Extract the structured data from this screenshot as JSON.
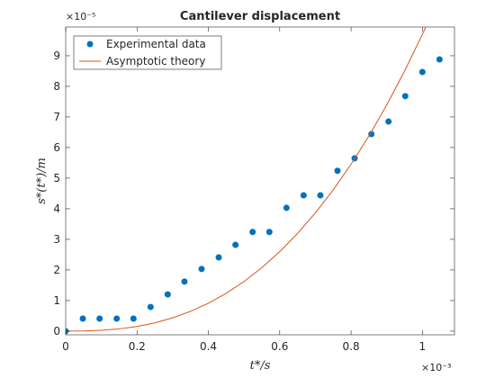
{
  "chart_data": {
    "type": "scatter-line",
    "title": "Cantilever displacement",
    "x_label": "t*/s",
    "y_label": "s*(t*)/m",
    "x_exponent": "×10⁻³",
    "y_exponent": "×10⁻⁵",
    "xlim": [
      0,
      1.09
    ],
    "ylim": [
      -0.12,
      9.94
    ],
    "xticks": [
      0,
      0.2,
      0.4,
      0.6,
      0.8,
      1
    ],
    "yticks": [
      0,
      1,
      2,
      3,
      4,
      5,
      6,
      7,
      8,
      9
    ],
    "legend": "upper left",
    "series": [
      {
        "name": "Experimental data",
        "color": "#0072bd",
        "kind": "markers",
        "x": [
          0,
          0.048,
          0.095,
          0.143,
          0.19,
          0.238,
          0.286,
          0.333,
          0.381,
          0.429,
          0.476,
          0.524,
          0.571,
          0.619,
          0.667,
          0.714,
          0.762,
          0.81,
          0.857,
          0.905,
          0.952,
          1.0,
          1.048
        ],
        "values": [
          0,
          0.41,
          0.41,
          0.41,
          0.41,
          0.79,
          1.2,
          1.62,
          2.03,
          2.41,
          2.82,
          3.24,
          3.24,
          4.03,
          4.44,
          4.44,
          5.24,
          5.65,
          6.44,
          6.85,
          7.68,
          8.47,
          8.88
        ]
      },
      {
        "name": "Asymptotic theory",
        "color": "#d95319",
        "kind": "line",
        "x": [
          0,
          0.05,
          0.1,
          0.15,
          0.2,
          0.25,
          0.3,
          0.35,
          0.4,
          0.45,
          0.5,
          0.55,
          0.6,
          0.65,
          0.7,
          0.75,
          0.8,
          0.85,
          0.9,
          0.95,
          1.0,
          1.01
        ],
        "values": [
          0,
          0.004,
          0.026,
          0.073,
          0.153,
          0.271,
          0.435,
          0.646,
          0.912,
          1.236,
          1.623,
          2.075,
          2.597,
          3.192,
          3.865,
          4.618,
          5.454,
          6.378,
          7.391,
          8.498,
          9.7,
          9.95
        ]
      }
    ]
  }
}
